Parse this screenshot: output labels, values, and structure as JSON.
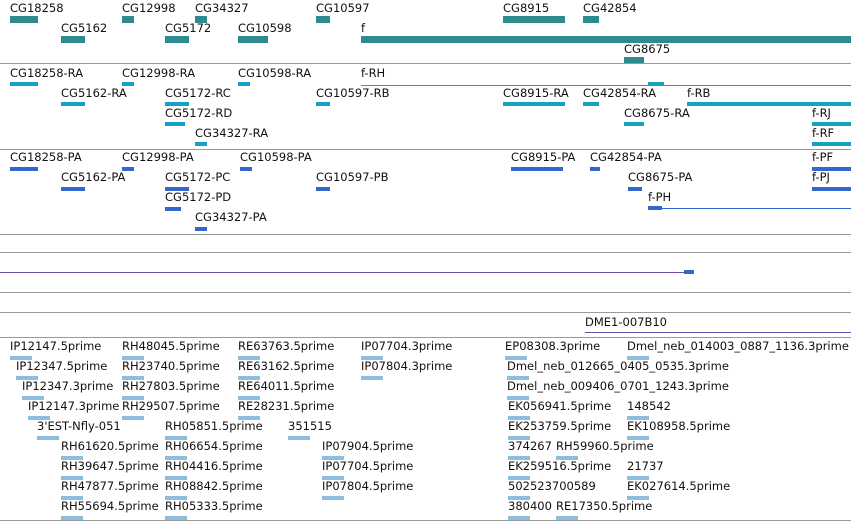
{
  "colors": {
    "gene": "#2e8b8d",
    "transcript": "#13a1c4",
    "protein": "#3566cf",
    "alignment": "#6b4fa8",
    "est": "#8fbde0",
    "separator": "#9a9a9a"
  },
  "tracks": {
    "genes": [
      "CG18258",
      "CG12998",
      "CG34327",
      "CG10597",
      "CG8915",
      "CG42854",
      "CG5162",
      "CG5172",
      "CG10598",
      "f",
      "CG8675"
    ],
    "transcripts": [
      "CG18258-RA",
      "CG12998-RA",
      "CG10598-RA",
      "f-RH",
      "CG5162-RA",
      "CG5172-RC",
      "CG10597-RB",
      "CG8915-RA",
      "CG42854-RA",
      "f-RB",
      "CG5172-RD",
      "CG8675-RA",
      "f-RJ",
      "CG34327-RA",
      "f-RF"
    ],
    "proteins": [
      "CG18258-PA",
      "CG12998-PA",
      "CG10598-PA",
      "CG8915-PA",
      "CG42854-PA",
      "f-PF",
      "CG5162-PA",
      "CG5172-PC",
      "CG10597-PB",
      "CG8675-PA",
      "f-PJ",
      "CG5172-PD",
      "f-PH",
      "CG34327-PA"
    ],
    "alignment_label": "DME1-007B10",
    "ests": [
      "IP12147.5prime",
      "RH48045.5prime",
      "RE63763.5prime",
      "IP07704.3prime",
      "EP08308.3prime",
      "Dmel_neb_014003_0887_1136.3prime",
      "IP12347.5prime",
      "RH23740.5prime",
      "RE63162.5prime",
      "IP07804.3prime",
      "Dmel_neb_012665_0405_0535.3prime",
      "IP12347.3prime",
      "RH27803.5prime",
      "RE64011.5prime",
      "Dmel_neb_009406_0701_1243.3prime",
      "IP12147.3prime",
      "RH29507.5prime",
      "RE28231.5prime",
      "EK056941.5prime",
      "148542",
      "3'EST-Nfly-051",
      "RH05851.5prime",
      "351515",
      "EK253759.5prime",
      "EK108958.5prime",
      "RH61620.5prime",
      "RH06654.5prime",
      "IP07904.5prime",
      "374267",
      "RH59960.5prime",
      "RH39647.5prime",
      "RH04416.5prime",
      "IP07704.5prime",
      "EK259516.5prime",
      "21737",
      "RH47877.5prime",
      "RH08842.5prime",
      "IP07804.5prime",
      "502523700589",
      "EK027614.5prime",
      "RH55694.5prime",
      "RH05333.5prime",
      "380400",
      "RE17350.5prime"
    ]
  }
}
